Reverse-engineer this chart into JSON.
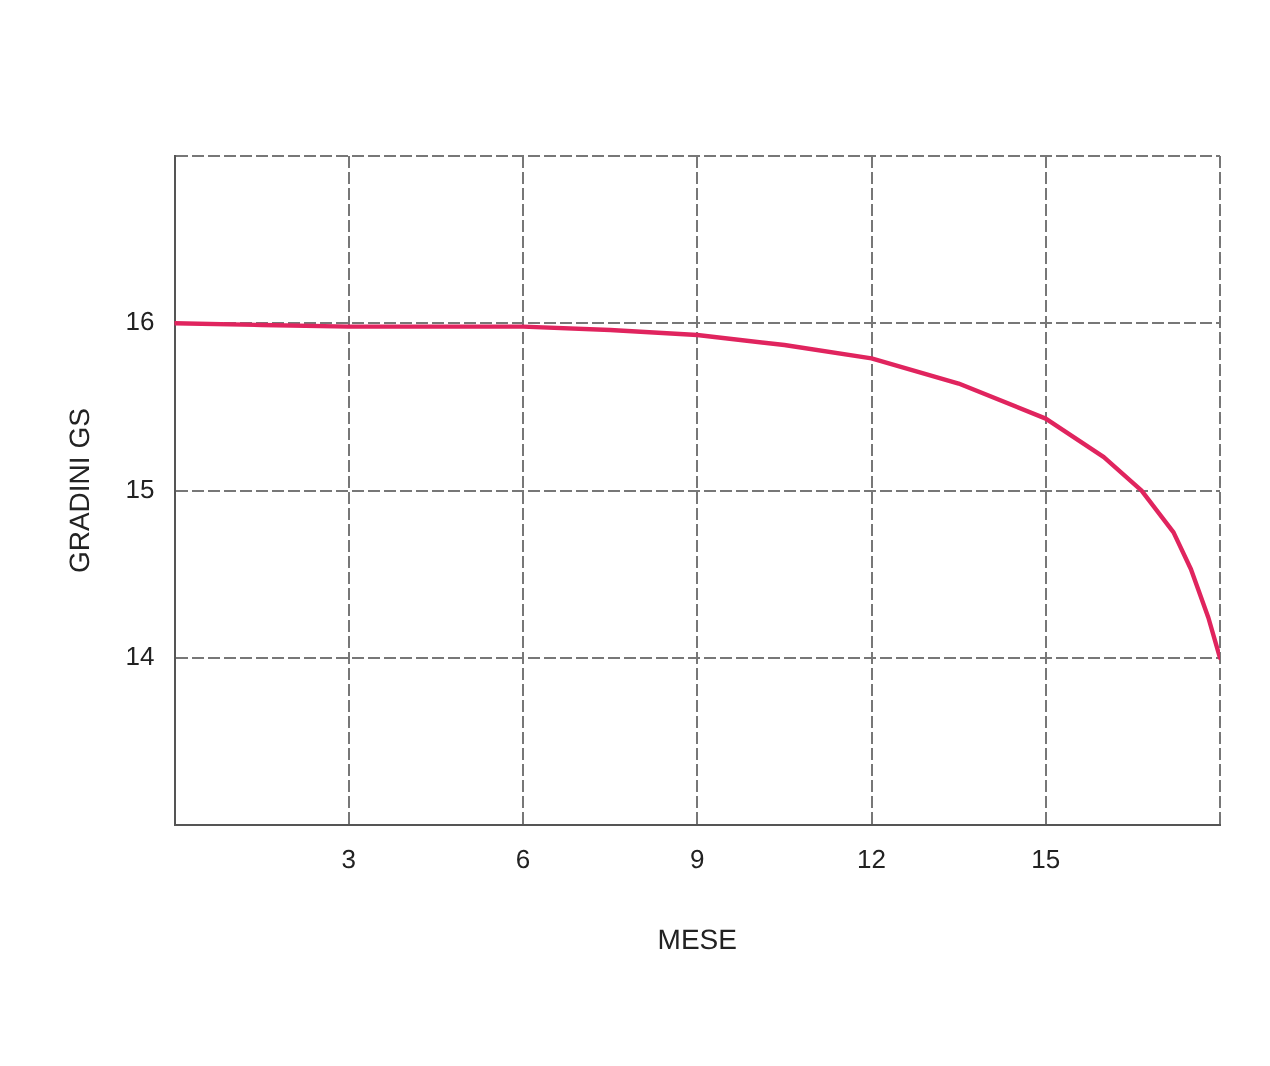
{
  "chart_data": {
    "type": "line",
    "xlabel": "MESE",
    "ylabel": "GRADINI GS",
    "xlim": [
      0,
      18
    ],
    "xticks": [
      {
        "value": 0,
        "label": null
      },
      3,
      6,
      9,
      12,
      15,
      {
        "value": 18,
        "label": null
      }
    ],
    "ylim": [
      13,
      17
    ],
    "yticks": [
      {
        "value": 13,
        "label": null
      },
      14,
      15,
      16,
      {
        "value": 17,
        "label": null
      }
    ],
    "grid": true,
    "marker": "none",
    "line_style": "solid",
    "series": [
      {
        "color": "#e0245e",
        "x": [
          0,
          1.5,
          3,
          4.5,
          6,
          7.5,
          9,
          10.5,
          12,
          13.5,
          15,
          16,
          16.65,
          17.2,
          17.5,
          17.8,
          18
        ],
        "values": [
          16.0,
          15.99,
          15.98,
          15.98,
          15.98,
          15.96,
          15.93,
          15.87,
          15.79,
          15.64,
          15.43,
          15.2,
          15.0,
          14.75,
          14.53,
          14.24,
          14.0
        ]
      }
    ]
  }
}
